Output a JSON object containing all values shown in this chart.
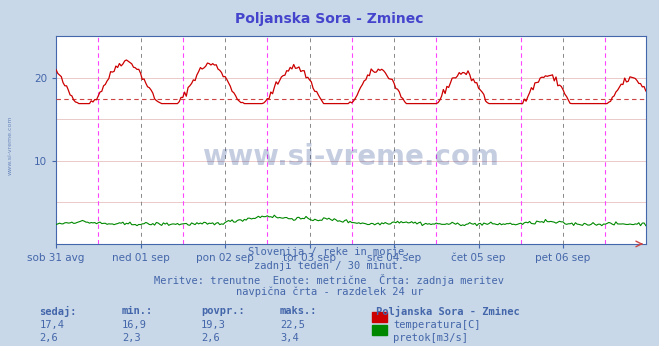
{
  "title": "Poljanska Sora - Zminec",
  "title_color": "#4444cc",
  "bg_color": "#c8d8e8",
  "plot_bg_color": "#ffffff",
  "grid_color_h": "#e8c0c0",
  "grid_color_v": "#c0c0c0",
  "xlabel_color": "#4466aa",
  "text_color": "#4466aa",
  "x_labels": [
    "sob 31 avg",
    "ned 01 sep",
    "pon 02 sep",
    "tor 03 sep",
    "sre 04 sep",
    "čet 05 sep",
    "pet 06 sep"
  ],
  "y_ticks": [
    10,
    20
  ],
  "y_grid_ticks": [
    5,
    10,
    15,
    20,
    25
  ],
  "ylim": [
    0,
    25
  ],
  "n_points": 336,
  "temp_min": 16.9,
  "temp_max": 22.5,
  "temp_avg": 17.4,
  "temp_color": "#cc0000",
  "flow_color": "#008800",
  "avg_line_color": "#cc4444",
  "vline_magenta": "#ff44ff",
  "vline_gray": "#888888",
  "watermark": "www.si-vreme.com",
  "watermark_color": "#1a3a8a",
  "side_text": "www.si-vreme.com",
  "subtitle_line1": "Slovenija / reke in morje.",
  "subtitle_line2": "zadnji teden / 30 minut.",
  "subtitle_line3": "Meritve: trenutne  Enote: metrične  Črta: zadnja meritev",
  "subtitle_line4": "navpična črta - razdelek 24 ur",
  "stat_headers": [
    "sedaj:",
    "min.:",
    "povpr.:",
    "maks.:"
  ],
  "stat_temp": [
    "17,4",
    "16,9",
    "19,3",
    "22,5"
  ],
  "stat_flow": [
    "2,6",
    "2,3",
    "2,6",
    "3,4"
  ],
  "legend_title": "Poljanska Sora - Zminec",
  "legend_temp": "temperatura[C]",
  "legend_flow": "pretok[m3/s]"
}
